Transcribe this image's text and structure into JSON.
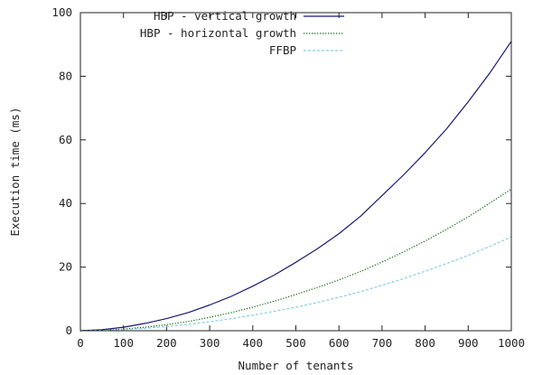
{
  "chart_data": {
    "type": "line",
    "title": "",
    "xlabel": "Number of tenants",
    "ylabel": "Execution time (ms)",
    "xlim": [
      0,
      1000
    ],
    "ylim": [
      0,
      100
    ],
    "xticks": [
      0,
      100,
      200,
      300,
      400,
      500,
      600,
      700,
      800,
      900,
      1000
    ],
    "yticks": [
      0,
      20,
      40,
      60,
      80,
      100
    ],
    "grid": false,
    "legend_position": "top-left",
    "series": [
      {
        "name": "HBP - vertical growth",
        "color": "#191970",
        "style": "solid",
        "x": [
          0,
          50,
          100,
          150,
          200,
          250,
          300,
          350,
          400,
          450,
          500,
          550,
          600,
          650,
          700,
          750,
          800,
          850,
          900,
          950,
          1000
        ],
        "y": [
          0,
          0.3,
          1.1,
          2.3,
          3.8,
          5.7,
          8.1,
          10.8,
          14.0,
          17.5,
          21.5,
          25.8,
          30.5,
          36.0,
          42.5,
          49.0,
          56.0,
          63.5,
          72.0,
          81.0,
          91.0
        ]
      },
      {
        "name": "HBP - horizontal growth",
        "color": "#006400",
        "style": "dotted",
        "x": [
          0,
          50,
          100,
          150,
          200,
          250,
          300,
          350,
          400,
          450,
          500,
          550,
          600,
          650,
          700,
          750,
          800,
          850,
          900,
          950,
          1000
        ],
        "y": [
          0,
          0.15,
          0.5,
          1.1,
          1.9,
          2.9,
          4.2,
          5.7,
          7.4,
          9.3,
          11.4,
          13.6,
          16.0,
          18.6,
          21.6,
          24.8,
          28.2,
          31.9,
          35.8,
          40.1,
          44.5
        ]
      },
      {
        "name": "FFBP",
        "color": "#87CEEB",
        "style": "dashed",
        "x": [
          0,
          50,
          100,
          150,
          200,
          250,
          300,
          350,
          400,
          450,
          500,
          550,
          600,
          650,
          700,
          750,
          800,
          850,
          900,
          950,
          1000
        ],
        "y": [
          0,
          0.1,
          0.35,
          0.75,
          1.3,
          2.0,
          2.8,
          3.8,
          4.9,
          6.1,
          7.4,
          8.9,
          10.5,
          12.3,
          14.3,
          16.4,
          18.7,
          21.1,
          23.7,
          26.5,
          29.5
        ]
      }
    ]
  }
}
